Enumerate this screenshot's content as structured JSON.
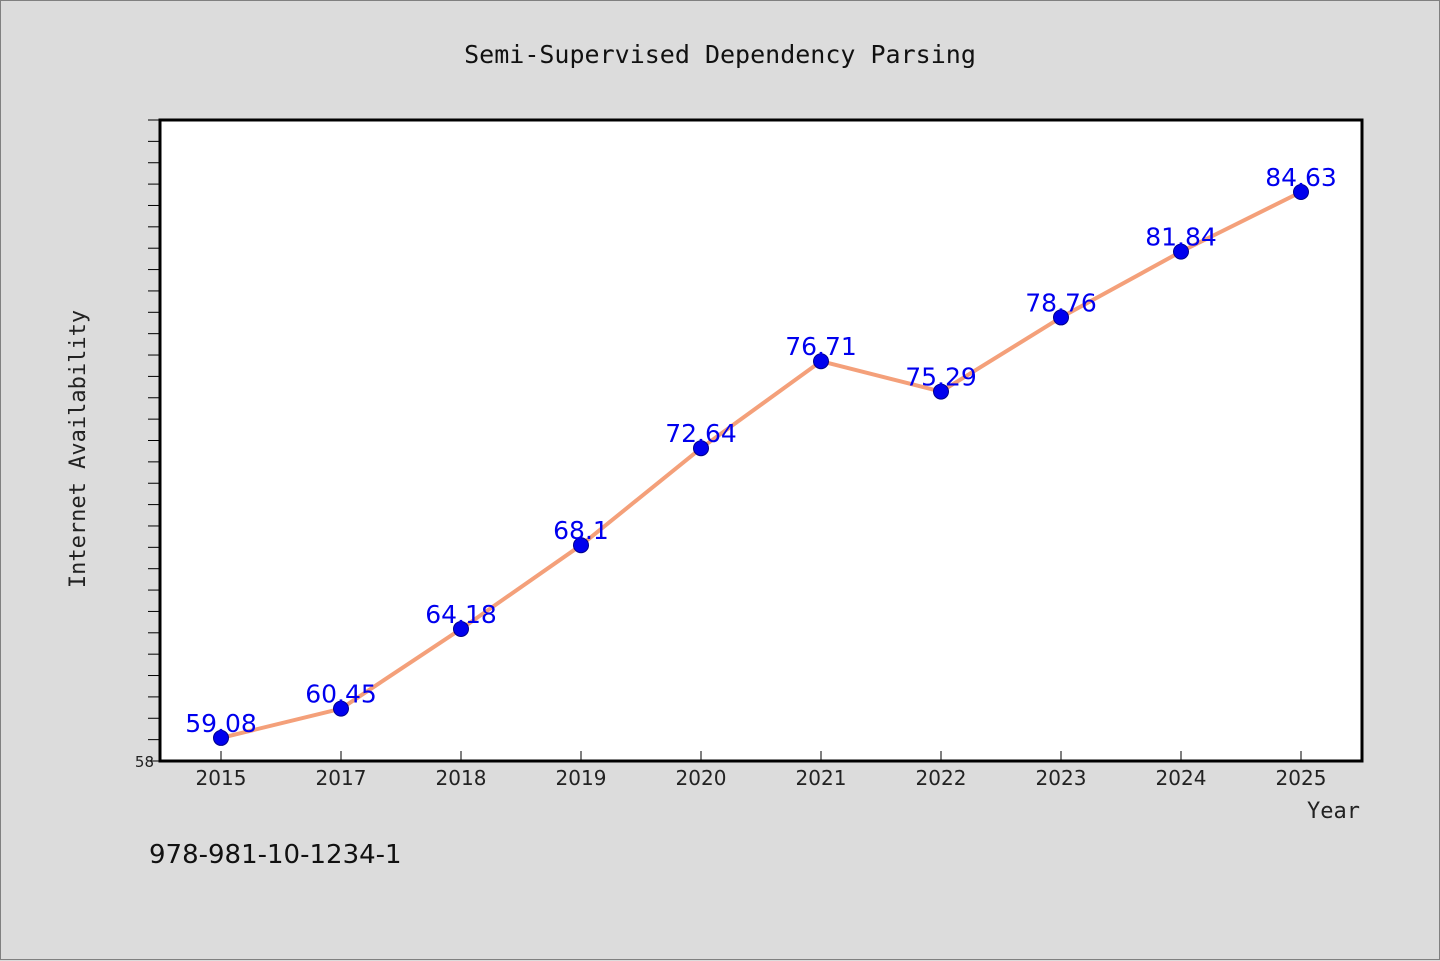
{
  "chart_data": {
    "type": "line",
    "title": "Semi-Supervised Dependency Parsing",
    "xlabel": "Year",
    "ylabel": "Internet Availability",
    "categories": [
      "2015",
      "2017",
      "2018",
      "2019",
      "2020",
      "2021",
      "2022",
      "2023",
      "2024",
      "2025"
    ],
    "series": [
      {
        "values": [
          59.08,
          60.45,
          64.18,
          68.1,
          72.64,
          76.71,
          75.29,
          78.76,
          81.84,
          84.63
        ],
        "labels": [
          "59.08",
          "60.45",
          "64.18",
          "68.1",
          "72.64",
          "76.71",
          "75.29",
          "78.76",
          "81.84",
          "84.63"
        ],
        "line_color": "#f4a07a",
        "marker_color": "#0000ee"
      }
    ],
    "ylim": [
      58,
      88
    ],
    "yticks_labeled": [
      "58"
    ],
    "grid": false,
    "legend": "none"
  },
  "footer": {
    "isbn": "978-981-10-1234-1"
  }
}
